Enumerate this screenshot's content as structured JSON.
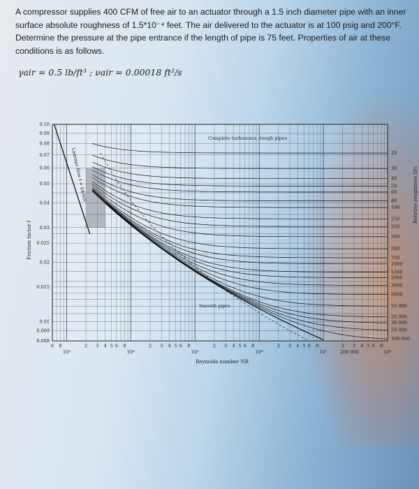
{
  "problem": {
    "line1": "A compressor supplies 400 CFM of free air to an actuator through a 1.5 inch diameter pipe with an inner",
    "line2": "surface absolute roughness of 1.5*10⁻⁴ feet. The air delivered to the actuator is at 100 psig and 200°F.",
    "line3": "Determine the pressure at the pipe entrance if the length of pipe is 75 feet. Properties of air at these",
    "line4": "conditions is as follows.",
    "properties": "γair = 0.5 lb/ft³ ;   νair = 0.00018 ft²/s"
  },
  "chart_data": {
    "type": "line",
    "xlabel": "Reynolds number NR",
    "ylabel": "Friction factor f",
    "right_label": "Relative roughness D/ε",
    "x_scale": "log",
    "y_scale": "log",
    "xlim": [
      600,
      100000000
    ],
    "ylim": [
      0.008,
      0.1
    ],
    "y_ticks": [
      "0.10",
      "0.09",
      "0.08",
      "0.07",
      "0.06",
      "0.05",
      "0.04",
      "0.03",
      "0.025",
      "0.02",
      "0.015",
      "0.01",
      "0.009",
      "0.008"
    ],
    "x_minor_labels": [
      "6",
      "8",
      "2",
      "3",
      "4",
      "5",
      "6",
      "8",
      "2",
      "3",
      "4",
      "5",
      "6",
      "8",
      "2",
      "3",
      "4",
      "5",
      "6",
      "8",
      "2",
      "3",
      "4",
      "5",
      "6",
      "8",
      "2",
      "3",
      "4",
      "5",
      "6",
      "8"
    ],
    "x_decades": [
      "10³",
      "10⁴",
      "10⁵",
      "10⁶",
      "10⁷",
      "10⁸"
    ],
    "roughness_labels": [
      "20",
      "30",
      "40",
      "50",
      "60",
      "80",
      "100",
      "150",
      "200",
      "300",
      "500",
      "750",
      "1000",
      "1500",
      "2000",
      "3000",
      "5000",
      "10 000",
      "20 000",
      "30 000",
      "50 000",
      "100 000"
    ],
    "roughness_values": [
      20,
      30,
      40,
      50,
      60,
      80,
      100,
      150,
      200,
      300,
      500,
      750,
      1000,
      1500,
      2000,
      3000,
      5000,
      10000,
      20000,
      30000,
      50000,
      100000
    ],
    "annotations": {
      "turbulence": "Complete turbulence, rough pipes",
      "laminar": "Laminar flow f = 64/NR",
      "smooth": "Smooth pipes",
      "x_bottom_extra": "200 000"
    }
  }
}
